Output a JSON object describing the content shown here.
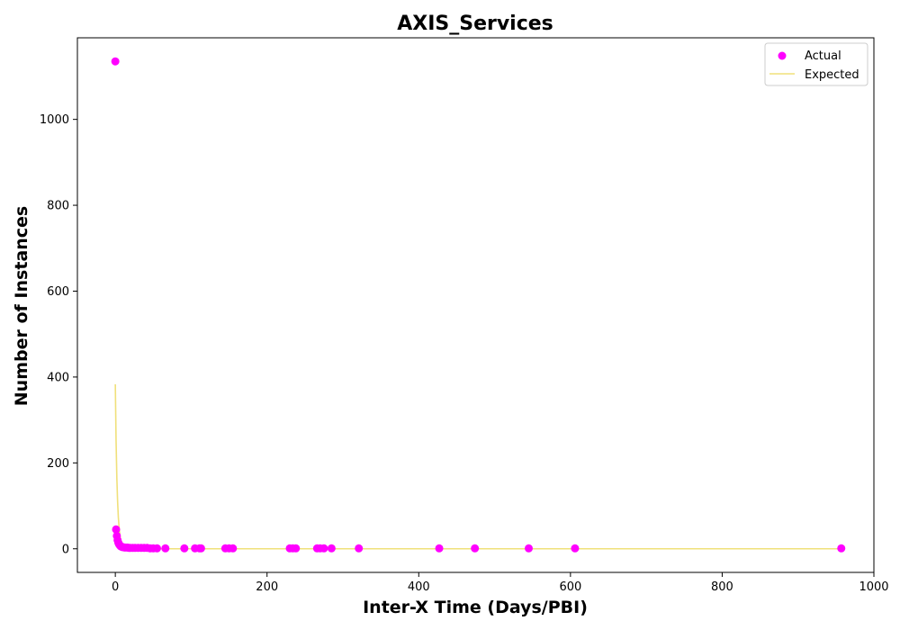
{
  "chart_data": {
    "type": "scatter",
    "title": "AXIS_Services",
    "xlabel": "Inter-X Time (Days/PBI)",
    "ylabel": "Number of Instances",
    "xlim": [
      -50,
      1000
    ],
    "ylim": [
      -55,
      1190
    ],
    "xticks": [
      0,
      200,
      400,
      600,
      800,
      1000
    ],
    "yticks": [
      0,
      200,
      400,
      600,
      800,
      1000
    ],
    "grid": false,
    "legend_position": "top-right",
    "series": [
      {
        "name": "Actual",
        "kind": "scatter",
        "color": "#ff00ff",
        "x": [
          0,
          1,
          2,
          3,
          4,
          5,
          6,
          7,
          8,
          9,
          10,
          12,
          14,
          16,
          18,
          20,
          23,
          26,
          30,
          34,
          38,
          42,
          46,
          50,
          55,
          66,
          91,
          105,
          111,
          113,
          145,
          150,
          155,
          230,
          234,
          238,
          266,
          270,
          275,
          285,
          321,
          427,
          474,
          545,
          606,
          957
        ],
        "y": [
          1135,
          45,
          30,
          20,
          14,
          10,
          8,
          6,
          5,
          4,
          4,
          3,
          3,
          3,
          2,
          2,
          2,
          2,
          2,
          2,
          2,
          2,
          1,
          1,
          1,
          1,
          1,
          1,
          1,
          1,
          1,
          1,
          1,
          1,
          1,
          1,
          1,
          1,
          1,
          1,
          1,
          1,
          1,
          1,
          1,
          1
        ]
      },
      {
        "name": "Expected",
        "kind": "line",
        "color": "#f0e07a",
        "x": [
          0,
          1,
          2,
          3,
          4,
          5,
          6,
          7,
          8,
          9,
          10,
          12,
          15,
          20,
          30,
          50,
          100,
          200,
          400,
          600,
          800,
          957
        ],
        "y": [
          383,
          250,
          165,
          110,
          73,
          48,
          32,
          21,
          14,
          9,
          6,
          3,
          1,
          0.3,
          0,
          0,
          0,
          0,
          0,
          0,
          0,
          0
        ]
      }
    ]
  }
}
